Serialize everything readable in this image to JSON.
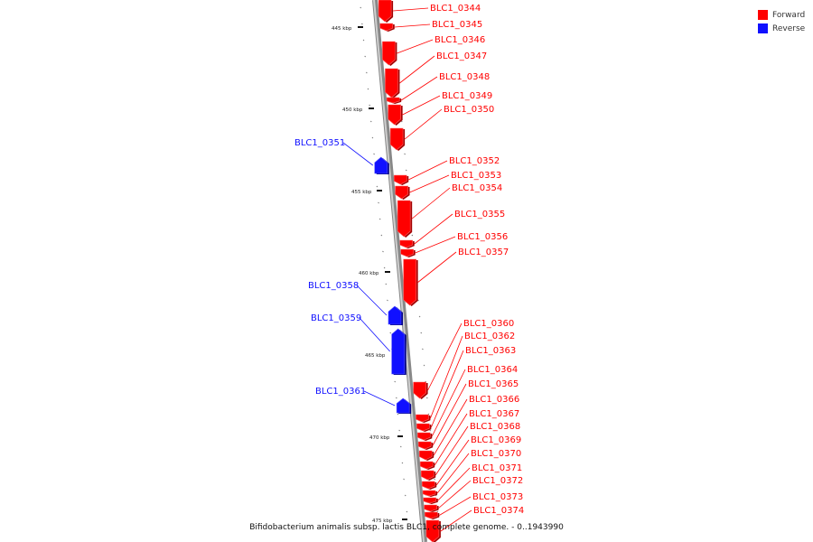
{
  "legend": {
    "forward": {
      "label": "Forward",
      "color": "#ff0000"
    },
    "reverse": {
      "label": "Reverse",
      "color": "#1010ff"
    }
  },
  "caption": "Bifidobacterium animalis subsp. lactis BLC1, complete genome. - 0..1943990",
  "axis": {
    "unit": "kbp",
    "ticks": [
      "445 kbp",
      "450 kbp",
      "455 kbp",
      "460 kbp",
      "465 kbp",
      "470 kbp",
      "475 kbp"
    ]
  },
  "genes": [
    {
      "name": "BLC1_0344",
      "strand": "forward"
    },
    {
      "name": "BLC1_0345",
      "strand": "forward"
    },
    {
      "name": "BLC1_0346",
      "strand": "forward"
    },
    {
      "name": "BLC1_0347",
      "strand": "forward"
    },
    {
      "name": "BLC1_0348",
      "strand": "forward"
    },
    {
      "name": "BLC1_0349",
      "strand": "forward"
    },
    {
      "name": "BLC1_0350",
      "strand": "forward"
    },
    {
      "name": "BLC1_0351",
      "strand": "reverse"
    },
    {
      "name": "BLC1_0352",
      "strand": "forward"
    },
    {
      "name": "BLC1_0353",
      "strand": "forward"
    },
    {
      "name": "BLC1_0354",
      "strand": "forward"
    },
    {
      "name": "BLC1_0355",
      "strand": "forward"
    },
    {
      "name": "BLC1_0356",
      "strand": "forward"
    },
    {
      "name": "BLC1_0357",
      "strand": "forward"
    },
    {
      "name": "BLC1_0358",
      "strand": "reverse"
    },
    {
      "name": "BLC1_0359",
      "strand": "reverse"
    },
    {
      "name": "BLC1_0360",
      "strand": "forward"
    },
    {
      "name": "BLC1_0361",
      "strand": "reverse"
    },
    {
      "name": "BLC1_0362",
      "strand": "forward"
    },
    {
      "name": "BLC1_0363",
      "strand": "forward"
    },
    {
      "name": "BLC1_0364",
      "strand": "forward"
    },
    {
      "name": "BLC1_0365",
      "strand": "forward"
    },
    {
      "name": "BLC1_0366",
      "strand": "forward"
    },
    {
      "name": "BLC1_0367",
      "strand": "forward"
    },
    {
      "name": "BLC1_0368",
      "strand": "forward"
    },
    {
      "name": "BLC1_0369",
      "strand": "forward"
    },
    {
      "name": "BLC1_0370",
      "strand": "forward"
    },
    {
      "name": "BLC1_0371",
      "strand": "forward"
    },
    {
      "name": "BLC1_0372",
      "strand": "forward"
    },
    {
      "name": "BLC1_0373",
      "strand": "forward"
    },
    {
      "name": "BLC1_0374",
      "strand": "forward"
    }
  ]
}
